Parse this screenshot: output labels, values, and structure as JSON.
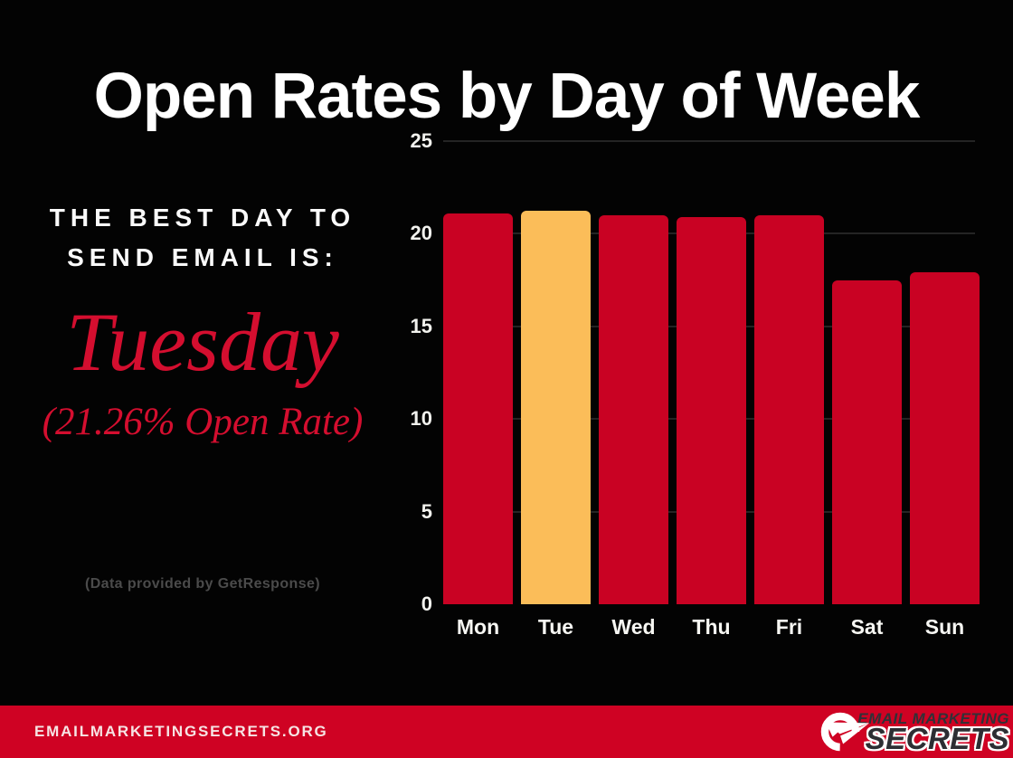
{
  "title": "Open Rates by Day of Week",
  "colors": {
    "background": "#030303",
    "bar_red": "#c90223",
    "highlight_orange": "#fbbd59",
    "accent_red_text": "#d40e2f",
    "footer_red": "#cf0223",
    "gridline": "#242424",
    "muted_gray": "#4b4b4b"
  },
  "left_panel": {
    "heading_line1": "THE BEST DAY TO",
    "heading_line2": "SEND EMAIL IS:",
    "best_day": "Tuesday",
    "open_rate_note": "(21.26% Open Rate)",
    "data_source": "(Data provided by GetResponse)"
  },
  "chart_data": {
    "type": "bar",
    "categories": [
      "Mon",
      "Tue",
      "Wed",
      "Thu",
      "Fri",
      "Sat",
      "Sun"
    ],
    "values": [
      21.1,
      21.26,
      21.0,
      20.9,
      21.0,
      17.5,
      17.9
    ],
    "highlight_category": "Tue",
    "highlight_value": 21.26,
    "bar_color": "#c90223",
    "highlight_color": "#fbbd59",
    "title": "",
    "xlabel": "",
    "ylabel": "",
    "ylim": [
      0,
      25
    ],
    "yticks": [
      0,
      5,
      10,
      15,
      20,
      25
    ],
    "grid": true,
    "legend": false
  },
  "footer": {
    "website": "EMAILMARKETINGSECRETS.ORG",
    "logo": {
      "icon": "paper-plane-circle-icon",
      "line1": "EMAIL MARKETING",
      "line2": "SECRETS"
    }
  }
}
